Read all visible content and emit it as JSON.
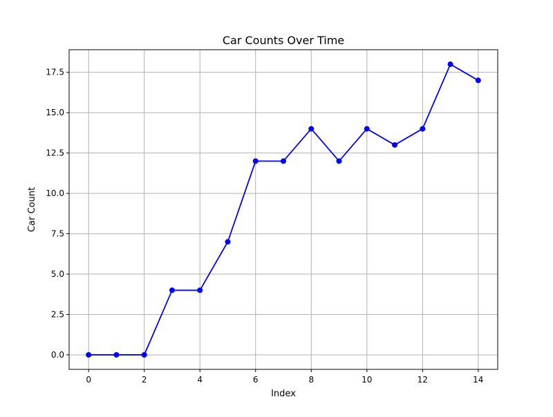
{
  "chart_data": {
    "type": "line",
    "title": "Car Counts Over Time",
    "xlabel": "Index",
    "ylabel": "Car Count",
    "x": [
      0,
      1,
      2,
      3,
      4,
      5,
      6,
      7,
      8,
      9,
      10,
      11,
      12,
      13,
      14
    ],
    "series": [
      {
        "values": [
          0,
          0,
          0,
          4,
          4,
          7,
          12,
          12,
          14,
          12,
          14,
          13,
          14,
          18,
          17
        ],
        "color": "#0000ff",
        "marker": "circle"
      }
    ],
    "xlim": [
      -0.7,
      14.7
    ],
    "ylim": [
      -0.9,
      18.9
    ],
    "xticks": [
      0,
      2,
      4,
      6,
      8,
      10,
      12,
      14
    ],
    "xtick_labels": [
      "0",
      "2",
      "4",
      "6",
      "8",
      "10",
      "12",
      "14"
    ],
    "yticks": [
      0,
      2.5,
      5,
      7.5,
      10,
      12.5,
      15,
      17.5
    ],
    "ytick_labels": [
      "0.0",
      "2.5",
      "5.0",
      "7.5",
      "10.0",
      "12.5",
      "15.0",
      "17.5"
    ],
    "grid": true,
    "grid_color": "#b0b0b0",
    "legend": false
  }
}
